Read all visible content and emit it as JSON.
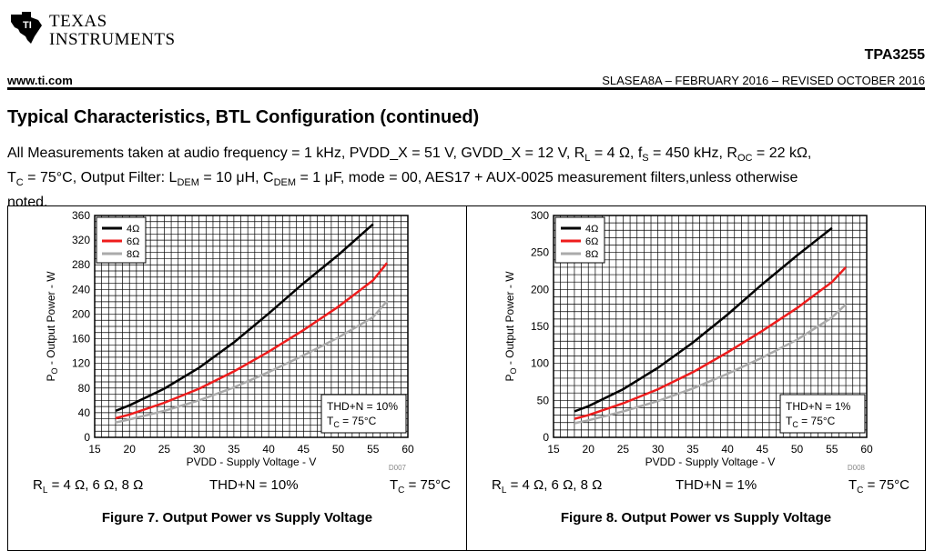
{
  "header": {
    "logo_line1": "TEXAS",
    "logo_line2": "INSTRUMENTS",
    "part_number": "TPA3255",
    "website": "www.ti.com",
    "revision": "SLASEA8A – FEBRUARY 2016 – REVISED OCTOBER 2016"
  },
  "section": {
    "title": "Typical Characteristics, BTL Configuration (continued)",
    "conditions": {
      "p1": "All Measurements taken at audio frequency = 1 kHz, PVDD_X = 51 V, GVDD_X = 12 V, R",
      "s1": "L",
      "p2": " = 4 Ω, f",
      "s2": "S",
      "p3": " = 450 kHz, R",
      "s3": "OC",
      "p4": " = 22 kΩ,",
      "p5": "T",
      "s5": "C",
      "p6": " = 75°C, Output Filter: L",
      "s6": "DEM",
      "p7": " = 10 μH, C",
      "s7": "DEM",
      "p8": " = 1 μF, mode = 00, AES17 + AUX-0025 measurement filters,unless otherwise",
      "p9": "noted."
    }
  },
  "colors": {
    "s4": "#000000",
    "s6": "#ee1c1c",
    "s8": "#aaaaaa"
  },
  "figures": [
    {
      "code": "D007",
      "caption": "Figure 7. Output Power vs Supply Voltage",
      "cond_rl_prefix": "R",
      "cond_rl_sub": "L",
      "cond_rl_rest": " = 4 Ω, 6 Ω, 8 Ω",
      "cond_thd": "THD+N = 10%",
      "cond_tc_prefix": "T",
      "cond_tc_sub": "C",
      "cond_tc_rest": " = 75°C"
    },
    {
      "code": "D008",
      "caption": "Figure 8. Output Power vs Supply Voltage",
      "cond_rl_prefix": "R",
      "cond_rl_sub": "L",
      "cond_rl_rest": " = 4 Ω, 6 Ω, 8 Ω",
      "cond_thd": "THD+N = 1%",
      "cond_tc_prefix": "T",
      "cond_tc_sub": "C",
      "cond_tc_rest": " = 75°C"
    }
  ],
  "chart_data": [
    {
      "type": "line",
      "xlabel": "PVDD - Supply Voltage - V",
      "ylabel": "P_O - Output Power - W",
      "ylabel_main": "P",
      "ylabel_sub": "O",
      "ylabel_rest": " - Output Power - W",
      "xlim": [
        15,
        60
      ],
      "ylim": [
        0,
        360
      ],
      "xticks": [
        15,
        20,
        25,
        30,
        35,
        40,
        45,
        50,
        55,
        60
      ],
      "yticks": [
        0,
        40,
        80,
        120,
        160,
        200,
        240,
        280,
        320,
        360
      ],
      "minor_x": 1,
      "minor_y": 10,
      "grid": true,
      "legend_position": "top-left",
      "annotation": {
        "line1": "THD+N = 10%",
        "line2_main": "T",
        "line2_sub": "C",
        "line2_rest": " = 75°C",
        "position": "bottom-right"
      },
      "series": [
        {
          "name": "4Ω",
          "color": "#000000",
          "x": [
            18,
            20,
            25,
            30,
            35,
            40,
            45,
            50,
            55
          ],
          "y": [
            43,
            52,
            79,
            113,
            154,
            201,
            250,
            296,
            346
          ]
        },
        {
          "name": "6Ω",
          "color": "#ee1c1c",
          "x": [
            18,
            20,
            25,
            30,
            35,
            40,
            45,
            50,
            55,
            57
          ],
          "y": [
            31,
            37,
            56,
            79,
            107,
            139,
            174,
            212,
            255,
            283
          ]
        },
        {
          "name": "8Ω",
          "color": "#aaaaaa",
          "x": [
            18,
            20,
            25,
            30,
            35,
            40,
            45,
            50,
            55,
            57
          ],
          "y": [
            24,
            29,
            43,
            60,
            81,
            106,
            133,
            162,
            195,
            221
          ]
        }
      ]
    },
    {
      "type": "line",
      "xlabel": "PVDD - Supply Voltage - V",
      "ylabel": "P_O - Output Power - W",
      "ylabel_main": "P",
      "ylabel_sub": "O",
      "ylabel_rest": " - Output Power - W",
      "xlim": [
        15,
        60
      ],
      "ylim": [
        0,
        300
      ],
      "xticks": [
        15,
        20,
        25,
        30,
        35,
        40,
        45,
        50,
        55,
        60
      ],
      "yticks": [
        0,
        50,
        100,
        150,
        200,
        250,
        300
      ],
      "minor_x": 1,
      "minor_y": 10,
      "grid": true,
      "legend_position": "top-left",
      "annotation": {
        "line1": "THD+N = 1%",
        "line2_main": "T",
        "line2_sub": "C",
        "line2_rest": " = 75°C",
        "position": "bottom-right"
      },
      "series": [
        {
          "name": "4Ω",
          "color": "#000000",
          "x": [
            18,
            20,
            25,
            30,
            35,
            40,
            45,
            50,
            55
          ],
          "y": [
            35,
            42,
            65,
            94,
            128,
            166,
            207,
            246,
            283
          ]
        },
        {
          "name": "6Ω",
          "color": "#ee1c1c",
          "x": [
            18,
            20,
            25,
            30,
            35,
            40,
            45,
            50,
            55,
            57
          ],
          "y": [
            25,
            30,
            46,
            65,
            88,
            115,
            144,
            175,
            210,
            230
          ]
        },
        {
          "name": "8Ω",
          "color": "#aaaaaa",
          "x": [
            18,
            20,
            25,
            30,
            35,
            40,
            45,
            50,
            55,
            57
          ],
          "y": [
            19,
            23,
            35,
            49,
            66,
            86,
            108,
            132,
            162,
            180
          ]
        }
      ]
    }
  ]
}
